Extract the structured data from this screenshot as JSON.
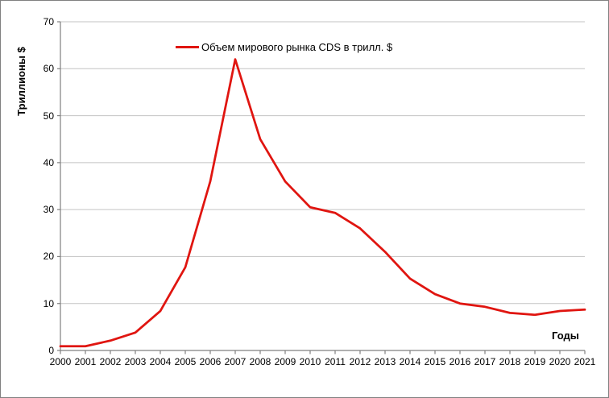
{
  "chart_data": {
    "type": "line",
    "title": "",
    "xlabel": "Годы",
    "ylabel": "Триллионы $",
    "legend_position": "top-center",
    "grid": "horizontal",
    "ylim": [
      0,
      70
    ],
    "ytick_step": 10,
    "ytick_labels": [
      "0",
      "10",
      "20",
      "30",
      "40",
      "50",
      "60",
      "70"
    ],
    "categories": [
      "2000",
      "2001",
      "2002",
      "2003",
      "2004",
      "2005",
      "2006",
      "2007",
      "2008",
      "2009",
      "2010",
      "2011",
      "2012",
      "2013",
      "2014",
      "2015",
      "2016",
      "2017",
      "2018",
      "2019",
      "2020",
      "2021"
    ],
    "series": [
      {
        "name": "Объем мирового рынка CDS в трилл. $",
        "values": [
          0.9,
          0.9,
          2.1,
          3.8,
          8.4,
          17.7,
          36,
          62,
          45,
          36,
          30.5,
          29.3,
          26,
          21,
          15.3,
          12,
          10,
          9.3,
          8,
          7.6,
          8.4,
          8.7
        ],
        "color": "#e01510"
      }
    ]
  },
  "colors": {
    "series_red": "#e01510",
    "gridline": "#c3c3c3",
    "axis": "#808080",
    "text": "#000000",
    "background": "#ffffff",
    "frame_border": "#808080"
  }
}
